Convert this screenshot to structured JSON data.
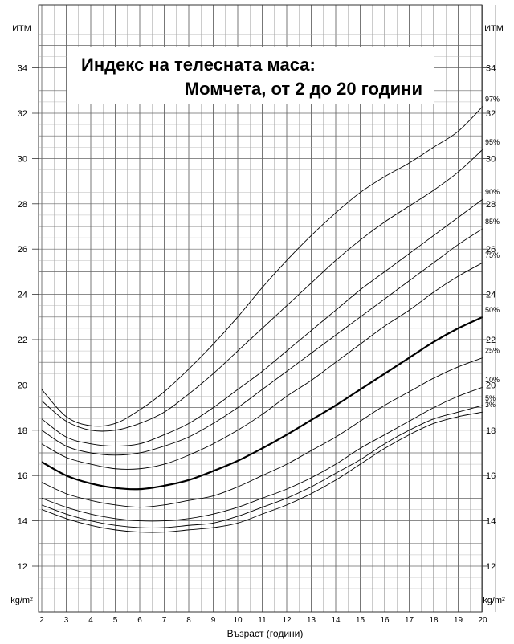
{
  "chart_data": {
    "type": "line",
    "title_line1": "Индекс на телесната маса:",
    "title_line2": "Момчета, от 2 до 20 години",
    "xlabel": "Възраст (години)",
    "ylabel_top": "ИТМ",
    "ylabel_bottom": "kg/m²",
    "xlim": [
      2,
      20.5
    ],
    "ylim": [
      11,
      36
    ],
    "x_ticks": [
      2,
      3,
      4,
      5,
      6,
      7,
      8,
      9,
      10,
      11,
      12,
      13,
      14,
      15,
      16,
      17,
      18,
      19,
      20
    ],
    "y_ticks": [
      12,
      14,
      16,
      18,
      20,
      22,
      24,
      26,
      28,
      30,
      32,
      34
    ],
    "grid": true,
    "series": [
      {
        "name": "3%",
        "bold": false,
        "points": [
          [
            2,
            14.5
          ],
          [
            3,
            14.1
          ],
          [
            4,
            13.8
          ],
          [
            5,
            13.6
          ],
          [
            6,
            13.5
          ],
          [
            7,
            13.5
          ],
          [
            8,
            13.6
          ],
          [
            9,
            13.7
          ],
          [
            10,
            13.9
          ],
          [
            11,
            14.3
          ],
          [
            12,
            14.7
          ],
          [
            13,
            15.2
          ],
          [
            14,
            15.8
          ],
          [
            15,
            16.5
          ],
          [
            16,
            17.2
          ],
          [
            17,
            17.8
          ],
          [
            18,
            18.3
          ],
          [
            19,
            18.6
          ],
          [
            20,
            18.8
          ]
        ]
      },
      {
        "name": "5%",
        "bold": false,
        "points": [
          [
            2,
            14.7
          ],
          [
            3,
            14.3
          ],
          [
            4,
            14.0
          ],
          [
            5,
            13.8
          ],
          [
            6,
            13.7
          ],
          [
            7,
            13.7
          ],
          [
            8,
            13.8
          ],
          [
            9,
            13.9
          ],
          [
            10,
            14.2
          ],
          [
            11,
            14.6
          ],
          [
            12,
            15.0
          ],
          [
            13,
            15.5
          ],
          [
            14,
            16.1
          ],
          [
            15,
            16.7
          ],
          [
            16,
            17.4
          ],
          [
            17,
            18.0
          ],
          [
            18,
            18.5
          ],
          [
            19,
            18.8
          ],
          [
            20,
            19.1
          ]
        ]
      },
      {
        "name": "10%",
        "bold": false,
        "points": [
          [
            2,
            15.0
          ],
          [
            3,
            14.6
          ],
          [
            4,
            14.3
          ],
          [
            5,
            14.1
          ],
          [
            6,
            14.0
          ],
          [
            7,
            14.0
          ],
          [
            8,
            14.1
          ],
          [
            9,
            14.3
          ],
          [
            10,
            14.6
          ],
          [
            11,
            15.0
          ],
          [
            12,
            15.4
          ],
          [
            13,
            15.9
          ],
          [
            14,
            16.5
          ],
          [
            15,
            17.2
          ],
          [
            16,
            17.8
          ],
          [
            17,
            18.4
          ],
          [
            18,
            19.0
          ],
          [
            19,
            19.5
          ],
          [
            20,
            19.9
          ]
        ]
      },
      {
        "name": "25%",
        "bold": false,
        "points": [
          [
            2,
            15.7
          ],
          [
            3,
            15.2
          ],
          [
            4,
            14.9
          ],
          [
            5,
            14.7
          ],
          [
            6,
            14.6
          ],
          [
            7,
            14.7
          ],
          [
            8,
            14.9
          ],
          [
            9,
            15.1
          ],
          [
            10,
            15.5
          ],
          [
            11,
            16.0
          ],
          [
            12,
            16.5
          ],
          [
            13,
            17.1
          ],
          [
            14,
            17.7
          ],
          [
            15,
            18.4
          ],
          [
            16,
            19.1
          ],
          [
            17,
            19.7
          ],
          [
            18,
            20.3
          ],
          [
            19,
            20.8
          ],
          [
            20,
            21.2
          ]
        ]
      },
      {
        "name": "50%",
        "bold": true,
        "points": [
          [
            2,
            16.6
          ],
          [
            3,
            16.0
          ],
          [
            4,
            15.65
          ],
          [
            5,
            15.45
          ],
          [
            6,
            15.4
          ],
          [
            7,
            15.55
          ],
          [
            8,
            15.8
          ],
          [
            9,
            16.2
          ],
          [
            10,
            16.65
          ],
          [
            11,
            17.2
          ],
          [
            12,
            17.8
          ],
          [
            13,
            18.45
          ],
          [
            14,
            19.1
          ],
          [
            15,
            19.8
          ],
          [
            16,
            20.5
          ],
          [
            17,
            21.2
          ],
          [
            18,
            21.9
          ],
          [
            19,
            22.5
          ],
          [
            20,
            23.0
          ]
        ]
      },
      {
        "name": "75%",
        "bold": false,
        "points": [
          [
            2,
            17.4
          ],
          [
            3,
            16.8
          ],
          [
            4,
            16.5
          ],
          [
            5,
            16.3
          ],
          [
            6,
            16.3
          ],
          [
            7,
            16.5
          ],
          [
            8,
            16.9
          ],
          [
            9,
            17.4
          ],
          [
            10,
            18.0
          ],
          [
            11,
            18.7
          ],
          [
            12,
            19.5
          ],
          [
            13,
            20.2
          ],
          [
            14,
            21.0
          ],
          [
            15,
            21.8
          ],
          [
            16,
            22.6
          ],
          [
            17,
            23.3
          ],
          [
            18,
            24.1
          ],
          [
            19,
            24.8
          ],
          [
            20,
            25.4
          ]
        ]
      },
      {
        "name": "85%",
        "bold": false,
        "points": [
          [
            2,
            18.0
          ],
          [
            3,
            17.3
          ],
          [
            4,
            17.0
          ],
          [
            5,
            16.9
          ],
          [
            6,
            17.0
          ],
          [
            7,
            17.3
          ],
          [
            8,
            17.7
          ],
          [
            9,
            18.3
          ],
          [
            10,
            19.0
          ],
          [
            11,
            19.8
          ],
          [
            12,
            20.6
          ],
          [
            13,
            21.4
          ],
          [
            14,
            22.2
          ],
          [
            15,
            23.0
          ],
          [
            16,
            23.8
          ],
          [
            17,
            24.6
          ],
          [
            18,
            25.4
          ],
          [
            19,
            26.2
          ],
          [
            20,
            26.9
          ]
        ]
      },
      {
        "name": "90%",
        "bold": false,
        "points": [
          [
            2,
            18.5
          ],
          [
            3,
            17.7
          ],
          [
            4,
            17.4
          ],
          [
            5,
            17.3
          ],
          [
            6,
            17.4
          ],
          [
            7,
            17.8
          ],
          [
            8,
            18.3
          ],
          [
            9,
            19.0
          ],
          [
            10,
            19.8
          ],
          [
            11,
            20.6
          ],
          [
            12,
            21.5
          ],
          [
            13,
            22.4
          ],
          [
            14,
            23.3
          ],
          [
            15,
            24.2
          ],
          [
            16,
            25.0
          ],
          [
            17,
            25.8
          ],
          [
            18,
            26.6
          ],
          [
            19,
            27.4
          ],
          [
            20,
            28.2
          ]
        ]
      },
      {
        "name": "95%",
        "bold": false,
        "points": [
          [
            2,
            19.3
          ],
          [
            3,
            18.4
          ],
          [
            4,
            18.0
          ],
          [
            5,
            18.0
          ],
          [
            6,
            18.3
          ],
          [
            7,
            18.8
          ],
          [
            8,
            19.6
          ],
          [
            9,
            20.5
          ],
          [
            10,
            21.5
          ],
          [
            11,
            22.5
          ],
          [
            12,
            23.5
          ],
          [
            13,
            24.5
          ],
          [
            14,
            25.5
          ],
          [
            15,
            26.4
          ],
          [
            16,
            27.2
          ],
          [
            17,
            27.9
          ],
          [
            18,
            28.6
          ],
          [
            19,
            29.4
          ],
          [
            20,
            30.4
          ]
        ]
      },
      {
        "name": "97%",
        "bold": false,
        "points": [
          [
            2,
            19.8
          ],
          [
            3,
            18.6
          ],
          [
            4,
            18.2
          ],
          [
            5,
            18.3
          ],
          [
            6,
            18.9
          ],
          [
            7,
            19.7
          ],
          [
            8,
            20.7
          ],
          [
            9,
            21.8
          ],
          [
            10,
            23.0
          ],
          [
            11,
            24.3
          ],
          [
            12,
            25.5
          ],
          [
            13,
            26.6
          ],
          [
            14,
            27.6
          ],
          [
            15,
            28.5
          ],
          [
            16,
            29.2
          ],
          [
            17,
            29.8
          ],
          [
            18,
            30.5
          ],
          [
            19,
            31.2
          ],
          [
            20,
            32.3
          ]
        ]
      }
    ]
  }
}
